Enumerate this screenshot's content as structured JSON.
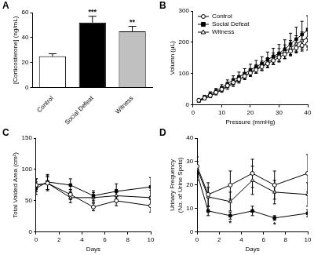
{
  "chart_data": [
    {
      "panel_label": "A",
      "type": "bar",
      "categories": [
        "Control",
        "Social Defeat",
        "Witness"
      ],
      "values": [
        25,
        52,
        45
      ],
      "errors": [
        2,
        5,
        4
      ],
      "colors": [
        "#ffffff",
        "#000000",
        "#c0c0c0"
      ],
      "y_label": "[Corticosterone] (ng/mL)",
      "ylim": [
        0,
        60
      ],
      "yticks": [
        0,
        20,
        40,
        60
      ],
      "annotations": [
        {
          "category": "Social Defeat",
          "text": "***"
        },
        {
          "category": "Witness",
          "text": "**"
        }
      ],
      "grid": false
    },
    {
      "panel_label": "B",
      "type": "line",
      "x_label": "Pressure (mmHg)",
      "y_label": "Volumn (μL)",
      "x": [
        2,
        4,
        6,
        8,
        10,
        12,
        14,
        16,
        18,
        20,
        22,
        24,
        26,
        28,
        30,
        32,
        34,
        36,
        38,
        40
      ],
      "xlim": [
        0,
        40
      ],
      "xticks": [
        0,
        10,
        20,
        30,
        40
      ],
      "ylim": [
        0,
        300
      ],
      "yticks": [
        0,
        100,
        200,
        300
      ],
      "legend": "upper left",
      "grid": false,
      "series": [
        {
          "name": "Control",
          "color": "#000000",
          "marker": "open_circle",
          "values": [
            15,
            22,
            30,
            40,
            50,
            62,
            72,
            82,
            92,
            102,
            112,
            122,
            132,
            142,
            152,
            162,
            172,
            182,
            190,
            195
          ],
          "errors": [
            3,
            4,
            4,
            5,
            6,
            6,
            7,
            8,
            8,
            9,
            10,
            10,
            11,
            12,
            13,
            14,
            15,
            16,
            18,
            20
          ]
        },
        {
          "name": "Social Defeat",
          "color": "#000000",
          "marker": "filled_square",
          "values": [
            15,
            25,
            35,
            45,
            55,
            68,
            80,
            90,
            100,
            112,
            122,
            132,
            145,
            155,
            165,
            178,
            195,
            210,
            225,
            240
          ],
          "errors": [
            5,
            6,
            7,
            8,
            10,
            12,
            13,
            15,
            16,
            18,
            20,
            22,
            24,
            26,
            28,
            30,
            34,
            38,
            42,
            45
          ]
        },
        {
          "name": "Witness",
          "color": "#000000",
          "marker": "open_triangle",
          "values": [
            12,
            20,
            28,
            38,
            48,
            58,
            68,
            80,
            92,
            103,
            115,
            125,
            135,
            148,
            160,
            170,
            182,
            195,
            205,
            215
          ],
          "errors": [
            3,
            4,
            5,
            6,
            7,
            8,
            9,
            10,
            11,
            12,
            14,
            15,
            16,
            18,
            20,
            22,
            24,
            26,
            28,
            30
          ]
        }
      ]
    },
    {
      "panel_label": "C",
      "type": "line",
      "x_label": "Days",
      "y_label": "Total Voided Area (cm²)",
      "x": [
        0,
        1,
        3,
        5,
        7,
        10
      ],
      "xlim": [
        0,
        10
      ],
      "xticks": [
        0,
        2,
        4,
        6,
        8,
        10
      ],
      "ylim": [
        0,
        150
      ],
      "yticks": [
        0,
        50,
        100,
        150
      ],
      "grid": false,
      "series": [
        {
          "name": "Control",
          "color": "#000000",
          "marker": "open_circle",
          "values": [
            75,
            78,
            60,
            40,
            50,
            42
          ],
          "errors": [
            10,
            12,
            8,
            6,
            8,
            10
          ]
        },
        {
          "name": "Social Defeat",
          "color": "#000000",
          "marker": "filled_square",
          "values": [
            70,
            80,
            75,
            58,
            65,
            72
          ],
          "errors": [
            10,
            12,
            10,
            8,
            12,
            15
          ]
        },
        {
          "name": "Witness",
          "color": "#000000",
          "marker": "open_triangle",
          "values": [
            75,
            78,
            55,
            55,
            58,
            55
          ],
          "errors": [
            10,
            10,
            8,
            8,
            10,
            12
          ]
        }
      ]
    },
    {
      "panel_label": "D",
      "type": "line",
      "x_label": "Days",
      "y_label": [
        "Urinary Frequency",
        "(No. of Urine Spots)"
      ],
      "x": [
        0,
        1,
        3,
        5,
        7,
        10
      ],
      "xlim": [
        0,
        10
      ],
      "xticks": [
        0,
        2,
        4,
        6,
        8,
        10
      ],
      "ylim": [
        0,
        40
      ],
      "yticks": [
        0,
        10,
        20,
        30,
        40
      ],
      "grid": false,
      "series": [
        {
          "name": "Control",
          "color": "#000000",
          "marker": "open_circle",
          "values": [
            28,
            16,
            20,
            25,
            20,
            25
          ],
          "errors": [
            4,
            5,
            6,
            6,
            6,
            8
          ]
        },
        {
          "name": "Social Defeat",
          "color": "#000000",
          "marker": "filled_square",
          "values": [
            25,
            9,
            7,
            9,
            6,
            8
          ],
          "errors": [
            3,
            2,
            1.5,
            2,
            1,
            1.5
          ]
        },
        {
          "name": "Witness",
          "color": "#000000",
          "marker": "open_triangle",
          "values": [
            27,
            15,
            13,
            22,
            17,
            16
          ],
          "errors": [
            3,
            4,
            4,
            6,
            5,
            5
          ]
        }
      ],
      "annotations": [
        {
          "series": "Social Defeat",
          "x": 3,
          "text": "*"
        },
        {
          "series": "Social Defeat",
          "x": 7,
          "text": "*"
        }
      ]
    }
  ]
}
